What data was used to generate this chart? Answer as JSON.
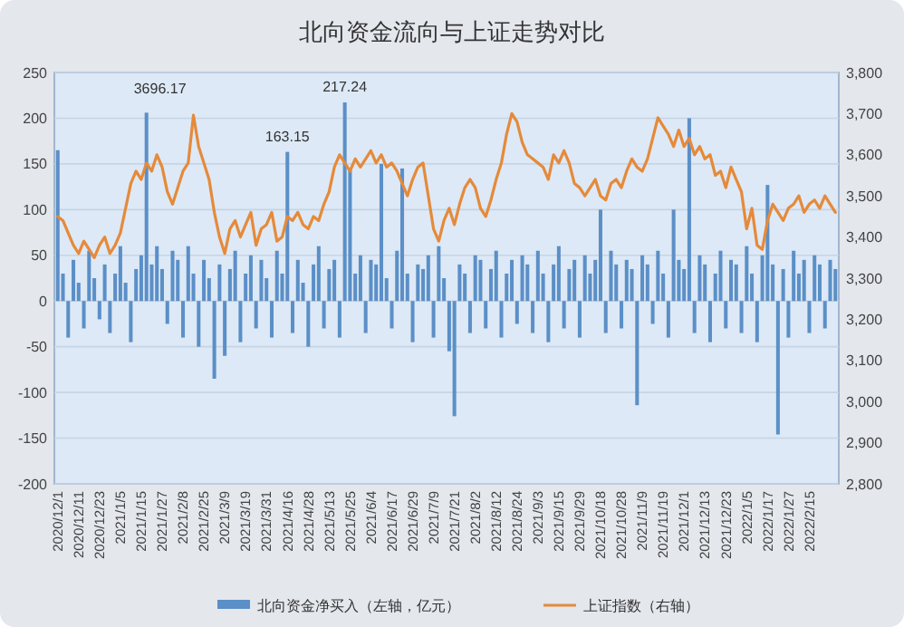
{
  "chart_data": {
    "type": "bar",
    "title": "北向资金流向与上证走势对比",
    "categories": [
      "2020/12/1",
      null,
      null,
      null,
      "2020/12/11",
      null,
      null,
      null,
      "2020/12/23",
      null,
      null,
      null,
      "2021/1/5",
      null,
      null,
      null,
      "2021/1/15",
      null,
      null,
      null,
      "2021/1/27",
      null,
      null,
      null,
      "2021/2/8",
      null,
      null,
      null,
      "2021/2/25",
      null,
      null,
      null,
      "2021/3/9",
      null,
      null,
      null,
      "2021/3/19",
      null,
      null,
      null,
      "2021/3/31",
      null,
      null,
      null,
      "2021/4/16",
      null,
      null,
      null,
      "2021/4/28",
      null,
      null,
      null,
      "2021/5/13",
      null,
      null,
      null,
      "2021/5/25",
      null,
      null,
      null,
      "2021/6/4",
      null,
      null,
      null,
      "2021/6/17",
      null,
      null,
      null,
      "2021/6/29",
      null,
      null,
      null,
      "2021/7/9",
      null,
      null,
      null,
      "2021/7/21",
      null,
      null,
      null,
      "2021/8/2",
      null,
      null,
      null,
      "2021/8/12",
      null,
      null,
      null,
      "2021/8/24",
      null,
      null,
      null,
      "2021/9/3",
      null,
      null,
      null,
      "2021/9/15",
      null,
      null,
      null,
      "2021/9/29",
      null,
      null,
      null,
      "2021/10/18",
      null,
      null,
      null,
      "2021/10/28",
      null,
      null,
      null,
      "2021/11/9",
      null,
      null,
      null,
      "2021/11/19",
      null,
      null,
      null,
      "2021/12/1",
      null,
      null,
      null,
      "2021/12/13",
      null,
      null,
      null,
      "2021/12/23",
      null,
      null,
      null,
      "2022/1/5",
      null,
      null,
      null,
      "2022/1/17",
      null,
      null,
      null,
      "2022/1/27",
      null,
      null,
      null,
      "2022/2/15",
      null,
      null,
      null,
      null,
      null
    ],
    "series": [
      {
        "name": "北向资金净买入（左轴，亿元）",
        "color": "#5b8fc7",
        "values": [
          165,
          30,
          -40,
          45,
          20,
          -30,
          55,
          25,
          -20,
          40,
          -35,
          30,
          60,
          20,
          -45,
          35,
          50,
          206,
          40,
          60,
          35,
          -25,
          55,
          45,
          -40,
          60,
          30,
          -50,
          45,
          25,
          -85,
          40,
          -60,
          35,
          55,
          -45,
          30,
          50,
          -30,
          45,
          25,
          -40,
          55,
          30,
          163.15,
          -35,
          45,
          20,
          -50,
          40,
          60,
          -30,
          35,
          45,
          -40,
          217.24,
          145,
          30,
          50,
          -35,
          45,
          40,
          150,
          25,
          -30,
          55,
          145,
          30,
          -45,
          40,
          35,
          50,
          -40,
          60,
          25,
          -55,
          -126,
          40,
          30,
          -35,
          50,
          45,
          -30,
          35,
          55,
          -40,
          30,
          45,
          -25,
          50,
          40,
          -35,
          55,
          30,
          -45,
          40,
          60,
          -30,
          35,
          45,
          -40,
          50,
          30,
          45,
          100,
          -35,
          55,
          40,
          -30,
          45,
          35,
          -114,
          50,
          40,
          -25,
          55,
          30,
          -40,
          100,
          45,
          35,
          200,
          -35,
          50,
          40,
          -45,
          30,
          55,
          -30,
          45,
          40,
          -35,
          60,
          30,
          -45,
          50,
          127,
          40,
          -146,
          35,
          -40,
          55,
          30,
          45,
          -35,
          50,
          40,
          -30,
          45,
          35
        ],
        "value_labels": [
          null,
          null,
          null,
          null,
          null,
          null,
          null,
          null,
          null,
          null,
          null,
          null,
          null,
          null,
          null,
          null,
          null,
          null,
          null,
          null,
          null,
          null,
          null,
          null,
          null,
          null,
          null,
          null,
          null,
          null,
          null,
          null,
          null,
          null,
          null,
          null,
          null,
          null,
          null,
          null,
          null,
          null,
          null,
          null,
          "163.15",
          null,
          null,
          null,
          null,
          null,
          null,
          null,
          null,
          null,
          null,
          "217.24",
          null,
          null,
          null,
          null,
          null,
          null,
          null,
          null,
          null,
          null,
          null,
          null,
          null,
          null,
          null,
          null,
          null,
          null,
          null,
          null,
          null,
          null,
          null,
          null,
          null,
          null,
          null,
          null,
          null,
          null,
          null,
          null,
          null,
          null,
          null,
          null,
          null,
          null,
          null,
          null,
          null,
          null,
          null,
          null,
          null,
          null,
          null,
          null,
          null,
          null,
          null,
          null,
          null,
          null,
          null,
          null,
          null,
          null,
          null,
          null,
          null,
          null,
          null,
          null,
          null,
          null,
          null,
          null,
          null,
          null,
          null,
          null,
          null,
          null,
          null,
          null,
          null,
          null,
          null,
          null,
          null,
          null,
          null,
          null,
          null,
          null,
          null,
          null,
          null,
          null,
          null,
          null,
          null,
          null
        ]
      },
      {
        "name": "上证指数（右轴）",
        "type": "line",
        "axis": "y2",
        "color": "#e58a3a",
        "values": [
          3450,
          3440,
          3410,
          3380,
          3360,
          3390,
          3370,
          3350,
          3380,
          3400,
          3360,
          3380,
          3410,
          3470,
          3530,
          3560,
          3540,
          3580,
          3560,
          3600,
          3570,
          3510,
          3480,
          3520,
          3560,
          3580,
          3696.17,
          3620,
          3580,
          3540,
          3460,
          3400,
          3360,
          3420,
          3440,
          3400,
          3430,
          3460,
          3380,
          3420,
          3430,
          3460,
          3390,
          3400,
          3450,
          3440,
          3460,
          3430,
          3420,
          3450,
          3440,
          3480,
          3510,
          3570,
          3600,
          3580,
          3560,
          3590,
          3570,
          3590,
          3610,
          3580,
          3600,
          3570,
          3580,
          3560,
          3530,
          3500,
          3540,
          3570,
          3580,
          3500,
          3420,
          3390,
          3440,
          3470,
          3430,
          3480,
          3520,
          3540,
          3520,
          3470,
          3450,
          3490,
          3540,
          3580,
          3650,
          3700,
          3680,
          3630,
          3600,
          3590,
          3580,
          3570,
          3540,
          3600,
          3580,
          3610,
          3580,
          3530,
          3520,
          3500,
          3520,
          3540,
          3500,
          3490,
          3530,
          3540,
          3520,
          3560,
          3590,
          3570,
          3560,
          3590,
          3640,
          3690,
          3670,
          3650,
          3620,
          3660,
          3620,
          3640,
          3600,
          3620,
          3590,
          3600,
          3550,
          3560,
          3520,
          3570,
          3540,
          3510,
          3420,
          3470,
          3380,
          3370,
          3440,
          3480,
          3460,
          3440,
          3470,
          3480,
          3500,
          3460,
          3480,
          3490,
          3470,
          3500,
          3480,
          3460
        ],
        "value_labels": [
          null,
          null,
          null,
          null,
          null,
          null,
          null,
          null,
          null,
          null,
          null,
          null,
          null,
          null,
          null,
          null,
          null,
          null,
          null,
          null,
          null,
          null,
          null,
          null,
          null,
          null,
          "3696.17",
          null,
          null,
          null,
          null,
          null,
          null,
          null,
          null,
          null,
          null,
          null,
          null,
          null,
          null,
          null,
          null,
          null,
          null,
          null,
          null,
          null,
          null,
          null,
          null,
          null,
          null,
          null,
          null,
          null,
          null,
          null,
          null,
          null,
          null,
          null,
          null,
          null,
          null,
          null,
          null,
          null,
          null,
          null,
          null,
          null,
          null,
          null,
          null,
          null,
          null,
          null,
          null,
          null,
          null,
          null,
          null,
          null,
          null,
          null,
          null,
          null,
          null,
          null,
          null,
          null,
          null,
          null,
          null,
          null,
          null,
          null,
          null,
          null,
          null,
          null,
          null,
          null,
          null,
          null,
          null,
          null,
          null,
          null,
          null,
          null,
          null,
          null,
          null,
          null,
          null,
          null,
          null,
          null,
          null,
          null,
          null,
          null,
          null,
          null,
          null,
          null,
          null,
          null,
          null,
          null,
          null,
          null,
          null,
          null,
          null,
          null,
          null,
          null,
          null,
          null,
          null,
          null,
          null,
          null,
          null,
          null,
          null,
          null
        ]
      }
    ],
    "ylim": [
      -200,
      250
    ],
    "yticks": [
      -200,
      -150,
      -100,
      -50,
      0,
      50,
      100,
      150,
      200,
      250
    ],
    "y2lim": [
      2800,
      3800
    ],
    "y2ticks": [
      {
        "value": 2800,
        "label": "2,800"
      },
      {
        "value": 2900,
        "label": "2,900"
      },
      {
        "value": 3000,
        "label": "3,000"
      },
      {
        "value": 3100,
        "label": "3,100"
      },
      {
        "value": 3200,
        "label": "3,200"
      },
      {
        "value": 3300,
        "label": "3,300"
      },
      {
        "value": 3400,
        "label": "3,400"
      },
      {
        "value": 3500,
        "label": "3,500"
      },
      {
        "value": 3600,
        "label": "3,600"
      },
      {
        "value": 3700,
        "label": "3,700"
      },
      {
        "value": 3800,
        "label": "3,800"
      }
    ],
    "grid": "y",
    "legend": "bottom"
  }
}
